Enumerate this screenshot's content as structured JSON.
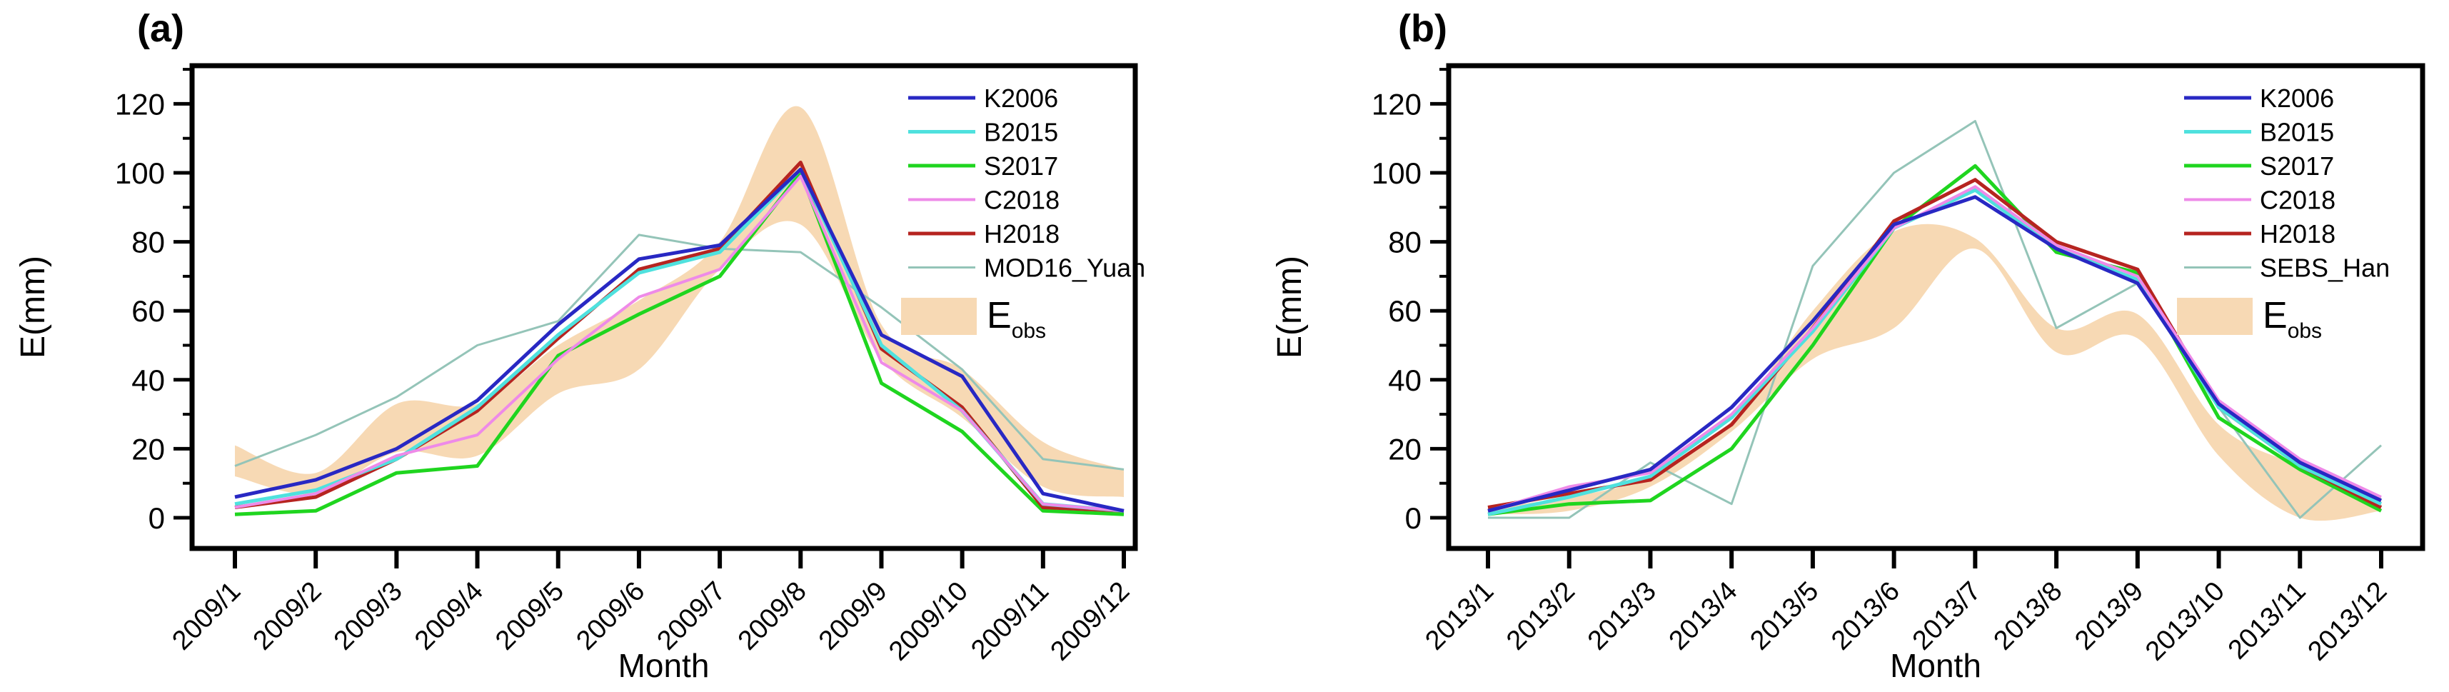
{
  "figure": {
    "background": "#ffffff",
    "axis_color": "#000000"
  },
  "chart_data": [
    {
      "type": "line",
      "panel_label": "(a)",
      "xlabel": "Month",
      "ylabel": "E(mm)",
      "ylim": [
        -9,
        131
      ],
      "yticks": [
        0,
        20,
        40,
        60,
        80,
        100,
        120
      ],
      "grid": false,
      "legend_position": "top-right",
      "categories": [
        "2009/1",
        "2009/2",
        "2009/3",
        "2009/4",
        "2009/5",
        "2009/6",
        "2009/7",
        "2009/8",
        "2009/9",
        "2009/10",
        "2009/11",
        "2009/12"
      ],
      "series": [
        {
          "name": "K2006",
          "color": "#2828c3",
          "width": 5,
          "values": [
            6,
            11,
            20,
            34,
            56,
            75,
            79,
            101,
            53,
            41,
            7,
            2
          ]
        },
        {
          "name": "B2015",
          "color": "#4fe1de",
          "width": 5,
          "values": [
            4,
            8,
            17,
            32,
            53,
            71,
            77,
            101,
            50,
            31,
            4,
            2
          ]
        },
        {
          "name": "S2017",
          "color": "#1fd51f",
          "width": 5,
          "values": [
            1,
            2,
            13,
            15,
            47,
            59,
            70,
            100,
            39,
            25,
            2,
            1
          ]
        },
        {
          "name": "C2018",
          "color": "#ee8ae8",
          "width": 4,
          "values": [
            3,
            7,
            18,
            24,
            46,
            64,
            72,
            99,
            45,
            31,
            4,
            2
          ]
        },
        {
          "name": "H2018",
          "color": "#b62420",
          "width": 5,
          "values": [
            3,
            6,
            17,
            31,
            52,
            72,
            78,
            103,
            49,
            32,
            3,
            2
          ]
        },
        {
          "name": "MOD16_Yuan",
          "color": "#94c4b8",
          "width": 3,
          "values": [
            15,
            24,
            35,
            50,
            57,
            82,
            78,
            77,
            61,
            43,
            17,
            14
          ]
        }
      ],
      "band_series": {
        "name_main": "E",
        "name_sub": "obs",
        "color": "#f7d9b4",
        "lower": [
          12,
          7,
          19,
          18,
          36,
          43,
          72,
          85,
          46,
          29,
          9,
          6
        ],
        "upper": [
          21,
          13,
          33,
          33,
          50,
          63,
          80,
          119,
          56,
          43,
          22,
          14
        ]
      }
    },
    {
      "type": "line",
      "panel_label": "(b)",
      "xlabel": "Month",
      "ylabel": "E(mm)",
      "ylim": [
        -9,
        131
      ],
      "yticks": [
        0,
        20,
        40,
        60,
        80,
        100,
        120
      ],
      "grid": false,
      "legend_position": "top-right",
      "categories": [
        "2013/1",
        "2013/2",
        "2013/3",
        "2013/4",
        "2013/5",
        "2013/6",
        "2013/7",
        "2013/8",
        "2013/9",
        "2013/10",
        "2013/11",
        "2013/12"
      ],
      "series": [
        {
          "name": "K2006",
          "color": "#2828c3",
          "width": 5,
          "values": [
            2,
            8,
            14,
            32,
            57,
            85,
            93,
            78,
            68,
            33,
            16,
            5
          ]
        },
        {
          "name": "B2015",
          "color": "#4fe1de",
          "width": 5,
          "values": [
            1,
            6,
            12,
            29,
            54,
            84,
            95,
            78,
            69,
            32,
            15,
            4
          ]
        },
        {
          "name": "S2017",
          "color": "#1fd51f",
          "width": 5,
          "values": [
            1,
            4,
            5,
            20,
            50,
            84,
            102,
            77,
            71,
            29,
            14,
            2
          ]
        },
        {
          "name": "C2018",
          "color": "#ee8ae8",
          "width": 4,
          "values": [
            2,
            9,
            13,
            30,
            55,
            84,
            96,
            79,
            70,
            34,
            17,
            6
          ]
        },
        {
          "name": "H2018",
          "color": "#b62420",
          "width": 5,
          "values": [
            3,
            7,
            11,
            27,
            55,
            86,
            98,
            80,
            72,
            32,
            15,
            3
          ]
        },
        {
          "name": "SEBS_Han",
          "color": "#94c4b8",
          "width": 3,
          "values": [
            0,
            0,
            16,
            4,
            73,
            100,
            115,
            55,
            68,
            32,
            0,
            21
          ]
        }
      ],
      "band_series": {
        "name_main": "E",
        "name_sub": "obs",
        "color": "#f7d9b4",
        "lower": [
          1,
          2,
          9,
          25,
          46,
          55,
          78,
          48,
          52,
          18,
          0,
          2
        ],
        "upper": [
          3,
          6,
          12,
          28,
          60,
          83,
          81,
          55,
          59,
          27,
          15,
          6
        ]
      }
    }
  ]
}
